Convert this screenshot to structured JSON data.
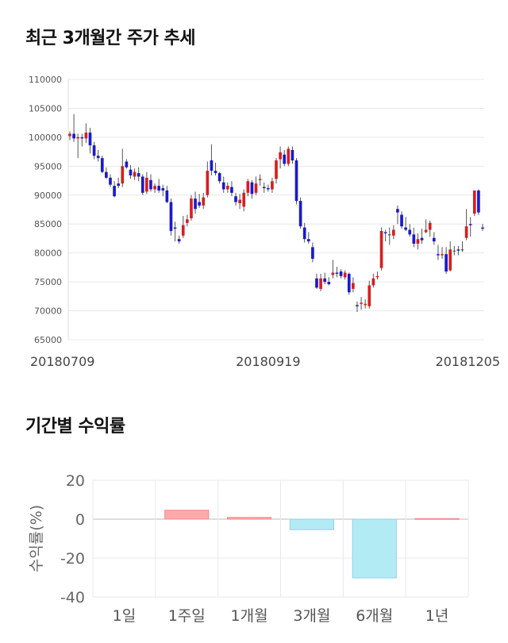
{
  "sections": {
    "price_title": "최근 3개월간 주가 추세",
    "returns_title": "기간별 수익률"
  },
  "colors": {
    "up": "#d61f1f",
    "down": "#1a1acb",
    "neutral": "#444444",
    "positive_bar": "#ffaaaa",
    "negative_bar": "#b3ebf5",
    "grid": "#e8e8e8"
  },
  "chart_data": [
    {
      "type": "candlestick",
      "title": "최근 3개월간 주가 추세",
      "ylim": [
        65000,
        110000
      ],
      "y_ticks": [
        "110000",
        "105000",
        "100000",
        "95000",
        "90000",
        "85000",
        "80000",
        "75000",
        "70000",
        "65000"
      ],
      "y_tick_values": [
        110000,
        105000,
        100000,
        95000,
        90000,
        85000,
        80000,
        75000,
        70000,
        65000
      ],
      "x_labels": [
        {
          "label": "20180709",
          "index": 0
        },
        {
          "label": "20180919",
          "index": 49
        },
        {
          "label": "20181205",
          "index": 100
        }
      ],
      "grid": true,
      "candles": [
        [
          100200,
          101000,
          99500,
          100600
        ],
        [
          100600,
          104000,
          99200,
          99800
        ],
        [
          99800,
          100600,
          96400,
          100000
        ],
        [
          100000,
          100600,
          98400,
          99800
        ],
        [
          99800,
          102400,
          99000,
          100800
        ],
        [
          100800,
          101600,
          97200,
          98600
        ],
        [
          98600,
          99200,
          96200,
          96800
        ],
        [
          96800,
          97800,
          95800,
          96400
        ],
        [
          96400,
          96800,
          93800,
          94000
        ],
        [
          94000,
          94800,
          92800,
          93000
        ],
        [
          93000,
          93600,
          91400,
          91800
        ],
        [
          91600,
          92400,
          89600,
          89800
        ],
        [
          92000,
          93000,
          91200,
          91600
        ],
        [
          92000,
          98000,
          91400,
          95000
        ],
        [
          95800,
          96200,
          94600,
          94800
        ],
        [
          94400,
          95200,
          92800,
          93400
        ],
        [
          93200,
          94600,
          92600,
          94000
        ],
        [
          93800,
          94800,
          92400,
          93200
        ],
        [
          93200,
          93600,
          90000,
          90400
        ],
        [
          90600,
          94000,
          90200,
          93000
        ],
        [
          92600,
          93600,
          90600,
          91000
        ],
        [
          91000,
          92000,
          90400,
          91600
        ],
        [
          91600,
          92800,
          90400,
          90800
        ],
        [
          91200,
          91800,
          89800,
          90800
        ],
        [
          90800,
          91600,
          88600,
          88800
        ],
        [
          88800,
          89400,
          83000,
          83800
        ],
        [
          84400,
          85400,
          82000,
          84200
        ],
        [
          82400,
          83000,
          81600,
          82000
        ],
        [
          83000,
          86400,
          82600,
          84800
        ],
        [
          85200,
          86600,
          84600,
          85800
        ],
        [
          86000,
          90000,
          85600,
          89400
        ],
        [
          89400,
          90600,
          86800,
          87600
        ],
        [
          88800,
          90200,
          87800,
          88200
        ],
        [
          88200,
          90400,
          87600,
          89600
        ],
        [
          90000,
          95800,
          89600,
          94200
        ],
        [
          96000,
          98800,
          93400,
          94200
        ],
        [
          94200,
          95600,
          93400,
          93800
        ],
        [
          93800,
          94000,
          92000,
          92400
        ],
        [
          92200,
          93200,
          90400,
          91000
        ],
        [
          91000,
          92200,
          90400,
          91600
        ],
        [
          91400,
          92400,
          89800,
          90400
        ],
        [
          89800,
          90400,
          88200,
          88800
        ],
        [
          88600,
          90200,
          87600,
          89200
        ],
        [
          88000,
          91000,
          87200,
          90400
        ],
        [
          90400,
          92800,
          89800,
          92400
        ],
        [
          92200,
          92600,
          89400,
          90200
        ],
        [
          90400,
          93200,
          90000,
          92000
        ],
        [
          92600,
          93600,
          91600,
          92800
        ],
        [
          91400,
          92200,
          90400,
          91200
        ],
        [
          91200,
          91800,
          90600,
          91000
        ],
        [
          91000,
          93000,
          90400,
          92400
        ],
        [
          92800,
          96400,
          92000,
          96000
        ],
        [
          96200,
          98400,
          94600,
          97400
        ],
        [
          97000,
          97800,
          95000,
          95400
        ],
        [
          95400,
          98400,
          95000,
          98000
        ],
        [
          97800,
          98400,
          95400,
          96000
        ],
        [
          96000,
          96400,
          88400,
          89000
        ],
        [
          89000,
          89600,
          84200,
          84600
        ],
        [
          84400,
          85200,
          81800,
          82400
        ],
        [
          82400,
          83600,
          81600,
          82000
        ],
        [
          81000,
          81800,
          78400,
          79000
        ],
        [
          75600,
          76400,
          73800,
          74000
        ],
        [
          73800,
          76400,
          73400,
          75600
        ],
        [
          75600,
          76600,
          74600,
          75000
        ],
        [
          75000,
          75800,
          74400,
          74600
        ],
        [
          76200,
          78800,
          75600,
          76600
        ],
        [
          76600,
          77600,
          75800,
          76400
        ],
        [
          76800,
          77200,
          75600,
          76000
        ],
        [
          75800,
          77000,
          75400,
          76600
        ],
        [
          76400,
          76600,
          72800,
          73200
        ],
        [
          73800,
          75800,
          73200,
          74800
        ],
        [
          71000,
          71600,
          69800,
          70800
        ],
        [
          71200,
          72400,
          70200,
          71400
        ],
        [
          71000,
          72000,
          70400,
          71200
        ],
        [
          70800,
          75200,
          70400,
          74400
        ],
        [
          74400,
          76400,
          74000,
          75600
        ],
        [
          75800,
          76800,
          75400,
          76000
        ],
        [
          77400,
          84400,
          77000,
          83800
        ],
        [
          83600,
          84000,
          82000,
          83400
        ],
        [
          83200,
          84400,
          81400,
          83200
        ],
        [
          83000,
          84800,
          82400,
          84000
        ],
        [
          87600,
          88200,
          85000,
          87000
        ],
        [
          86600,
          87200,
          84200,
          84600
        ],
        [
          84400,
          86200,
          83800,
          84000
        ],
        [
          84000,
          85000,
          82800,
          83200
        ],
        [
          83200,
          84400,
          81000,
          81600
        ],
        [
          81600,
          83400,
          80600,
          82400
        ],
        [
          82600,
          84200,
          81600,
          82200
        ],
        [
          83600,
          85800,
          83400,
          84000
        ],
        [
          84000,
          85600,
          82800,
          85200
        ],
        [
          82600,
          83600,
          81400,
          82000
        ],
        [
          79800,
          81400,
          78800,
          79600
        ],
        [
          79600,
          81000,
          79000,
          79800
        ],
        [
          79800,
          81000,
          76400,
          76800
        ],
        [
          77000,
          82000,
          76800,
          80600
        ],
        [
          80400,
          81200,
          79600,
          80400
        ],
        [
          80600,
          81200,
          79600,
          80400
        ],
        [
          80600,
          82000,
          80200,
          80600
        ],
        [
          82600,
          87600,
          82200,
          84600
        ],
        [
          85000,
          86200,
          82800,
          84800
        ],
        [
          86800,
          90800,
          86400,
          90800
        ],
        [
          90800,
          91000,
          86600,
          87000
        ],
        [
          84400,
          85000,
          83800,
          84200
        ]
      ]
    },
    {
      "type": "bar",
      "title": "기간별 수익률",
      "categories": [
        "1일",
        "1주일",
        "1개월",
        "3개월",
        "6개월",
        "1년"
      ],
      "values": [
        0,
        4.6,
        0.9,
        -5.4,
        -30.2,
        0.3
      ],
      "ylabel": "수익률(%)",
      "ylim": [
        -40,
        20
      ],
      "y_ticks": [
        "20",
        "0",
        "-20",
        "-40"
      ],
      "y_tick_values": [
        20,
        0,
        -20,
        -40
      ],
      "grid": true
    }
  ]
}
